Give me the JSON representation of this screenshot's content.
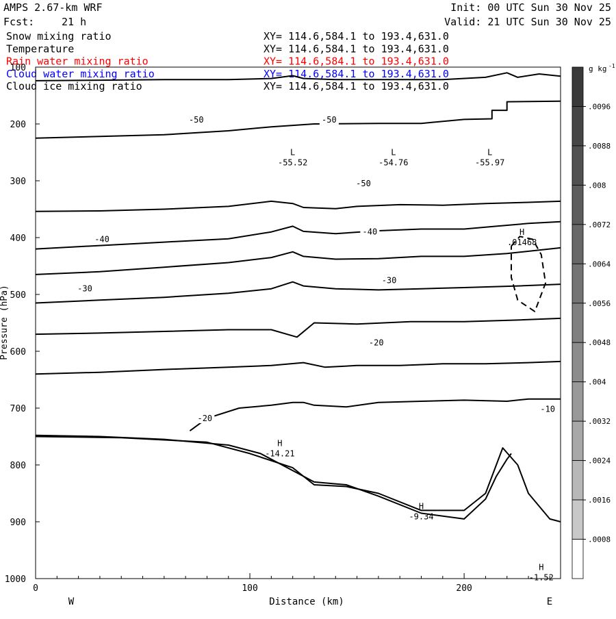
{
  "header": {
    "model": "AMPS 2.67-km WRF",
    "fcst_label": "Fcst:",
    "fcst_value": "21 h",
    "init": "Init: 00 UTC Sun 30 Nov 25",
    "valid": "Valid: 21 UTC Sun 30 Nov 25"
  },
  "fields": [
    {
      "name": "Snow mixing ratio",
      "xy": "XY= 114.6,584.1 to 193.4,631.0",
      "color": "#000000"
    },
    {
      "name": "Temperature",
      "xy": "XY= 114.6,584.1 to 193.4,631.0",
      "color": "#000000"
    },
    {
      "name": "Rain water mixing ratio",
      "xy": "XY= 114.6,584.1 to 193.4,631.0",
      "color": "#ff0000"
    },
    {
      "name": "Cloud water mixing ratio",
      "xy": "XY= 114.6,584.1 to 193.4,631.0",
      "color": "#0000ff"
    },
    {
      "name": "Cloud ice mixing ratio",
      "xy": "XY= 114.6,584.1 to 193.4,631.0",
      "color": "#000000"
    }
  ],
  "chart_data": {
    "type": "contour",
    "xlabel": "Distance (km)",
    "ylabel": "Pressure (hPa)",
    "xlim": [
      0,
      245
    ],
    "ylim": [
      1000,
      100
    ],
    "x_ticks": [
      0,
      100,
      200
    ],
    "y_ticks": [
      100,
      200,
      300,
      400,
      500,
      600,
      700,
      800,
      900,
      1000
    ],
    "west_label": "W",
    "east_label": "E",
    "colorbar": {
      "unit": "g kg",
      "unit_exp": "-1",
      "labels": [
        ".0096",
        ".0088",
        ".008",
        ".0072",
        ".0064",
        ".0056",
        ".0048",
        ".004",
        ".0032",
        ".0024",
        ".0016",
        ".0008"
      ],
      "shades": [
        "#3a3a3a",
        "#464646",
        "#515151",
        "#5d5d5d",
        "#686868",
        "#747474",
        "#808080",
        "#8c8c8c",
        "#999999",
        "#a8a8a8",
        "#b8b8b8",
        "#c8c8c8",
        "#ffffff"
      ]
    },
    "contours": [
      {
        "field": "temperature",
        "points": [
          [
            0,
            124
          ],
          [
            30,
            123
          ],
          [
            60,
            122
          ],
          [
            90,
            122
          ],
          [
            110,
            120
          ],
          [
            120,
            115
          ],
          [
            125,
            120
          ],
          [
            140,
            122
          ],
          [
            160,
            122
          ],
          [
            190,
            122
          ],
          [
            210,
            118
          ],
          [
            220,
            110
          ],
          [
            225,
            118
          ],
          [
            235,
            112
          ],
          [
            245,
            116
          ]
        ]
      },
      {
        "field": "temperature",
        "label": "-50",
        "label_at": [
          74,
          193
        ],
        "points": [
          [
            0,
            225
          ],
          [
            30,
            222
          ],
          [
            60,
            219
          ],
          [
            90,
            212
          ],
          [
            110,
            205
          ],
          [
            130,
            200
          ],
          [
            160,
            199
          ],
          [
            180,
            199
          ],
          [
            200,
            192
          ],
          [
            213,
            191
          ],
          [
            213,
            176
          ],
          [
            220,
            176
          ],
          [
            220,
            161
          ],
          [
            245,
            160
          ]
        ]
      },
      {
        "field": "temperature",
        "label": "-50",
        "label_at": [
          152,
          305
        ],
        "points": [
          [
            0,
            354
          ],
          [
            30,
            353
          ],
          [
            60,
            350
          ],
          [
            90,
            345
          ],
          [
            110,
            336
          ],
          [
            120,
            340
          ],
          [
            125,
            347
          ],
          [
            140,
            349
          ],
          [
            150,
            345
          ],
          [
            170,
            342
          ],
          [
            190,
            343
          ],
          [
            210,
            340
          ],
          [
            230,
            338
          ],
          [
            245,
            336
          ]
        ]
      },
      {
        "field": "temperature",
        "points": [
          [
            0,
            420
          ],
          [
            30,
            414
          ],
          [
            60,
            408
          ],
          [
            90,
            402
          ],
          [
            110,
            390
          ],
          [
            120,
            380
          ],
          [
            125,
            389
          ],
          [
            140,
            393
          ],
          [
            160,
            388
          ],
          [
            180,
            385
          ],
          [
            200,
            385
          ],
          [
            215,
            380
          ],
          [
            230,
            375
          ],
          [
            245,
            372
          ]
        ]
      },
      {
        "field": "temperature",
        "label": "-40",
        "label_at": [
          31,
          403
        ],
        "points": [
          [
            0,
            465
          ],
          [
            30,
            460
          ],
          [
            60,
            452
          ],
          [
            90,
            444
          ],
          [
            110,
            435
          ],
          [
            120,
            425
          ],
          [
            125,
            433
          ],
          [
            140,
            438
          ],
          [
            160,
            437
          ],
          [
            180,
            433
          ],
          [
            200,
            433
          ],
          [
            220,
            428
          ],
          [
            235,
            422
          ],
          [
            245,
            418
          ]
        ]
      },
      {
        "field": "temperature",
        "points": [
          [
            0,
            515
          ],
          [
            30,
            510
          ],
          [
            60,
            505
          ],
          [
            90,
            498
          ],
          [
            110,
            490
          ],
          [
            120,
            478
          ],
          [
            125,
            485
          ],
          [
            140,
            490
          ],
          [
            160,
            492
          ],
          [
            180,
            490
          ],
          [
            200,
            488
          ],
          [
            225,
            485
          ],
          [
            245,
            482
          ]
        ]
      },
      {
        "field": "temperature",
        "label": "-30",
        "label_at": [
          23,
          490
        ],
        "points": [
          [
            0,
            570
          ],
          [
            30,
            568
          ],
          [
            60,
            565
          ],
          [
            90,
            562
          ],
          [
            110,
            562
          ],
          [
            122,
            575
          ],
          [
            130,
            550
          ],
          [
            150,
            552
          ],
          [
            175,
            548
          ],
          [
            200,
            548
          ],
          [
            225,
            545
          ],
          [
            245,
            542
          ]
        ]
      },
      {
        "field": "temperature",
        "points": [
          [
            0,
            640
          ],
          [
            30,
            637
          ],
          [
            60,
            632
          ],
          [
            90,
            628
          ],
          [
            110,
            625
          ],
          [
            125,
            620
          ],
          [
            135,
            628
          ],
          [
            150,
            625
          ],
          [
            170,
            625
          ],
          [
            190,
            622
          ],
          [
            210,
            622
          ],
          [
            230,
            620
          ],
          [
            245,
            618
          ]
        ]
      },
      {
        "field": "temperature",
        "label": "-20",
        "label_at": [
          159,
          585
        ],
        "points": [
          [
            72,
            740
          ],
          [
            80,
            718
          ],
          [
            95,
            700
          ],
          [
            110,
            695
          ],
          [
            120,
            690
          ],
          [
            125,
            690
          ],
          [
            130,
            695
          ],
          [
            145,
            698
          ],
          [
            160,
            690
          ],
          [
            180,
            688
          ],
          [
            200,
            686
          ],
          [
            220,
            688
          ],
          [
            230,
            684
          ],
          [
            245,
            684
          ]
        ]
      },
      {
        "field": "temperature",
        "label": "-10",
        "label_at": [
          239,
          702
        ],
        "points": [
          [
            0,
            750
          ],
          [
            40,
            752
          ],
          [
            80,
            760
          ],
          [
            100,
            780
          ],
          [
            120,
            805
          ],
          [
            130,
            835
          ],
          [
            145,
            838
          ],
          [
            160,
            850
          ],
          [
            180,
            880
          ],
          [
            200,
            880
          ],
          [
            210,
            850
          ],
          [
            218,
            770
          ],
          [
            225,
            800
          ],
          [
            230,
            850
          ],
          [
            240,
            895
          ],
          [
            245,
            900
          ]
        ]
      },
      {
        "field": "temperature",
        "points": [
          [
            0,
            748
          ],
          [
            30,
            750
          ],
          [
            60,
            755
          ],
          [
            90,
            765
          ],
          [
            105,
            780
          ],
          [
            120,
            810
          ],
          [
            130,
            830
          ],
          [
            145,
            835
          ],
          [
            160,
            855
          ],
          [
            180,
            885
          ],
          [
            200,
            895
          ],
          [
            210,
            860
          ],
          [
            215,
            820
          ],
          [
            220,
            790
          ],
          [
            222,
            780
          ]
        ]
      },
      {
        "field": "cloud_ice",
        "dashed": true,
        "points": [
          [
            222,
            415
          ],
          [
            226,
            398
          ],
          [
            232,
            403
          ],
          [
            236,
            430
          ],
          [
            238,
            480
          ],
          [
            233,
            530
          ],
          [
            225,
            510
          ],
          [
            222,
            470
          ],
          [
            222,
            415
          ]
        ]
      }
    ],
    "extrema": [
      {
        "kind": "L",
        "value": "-55.52",
        "x": 120,
        "p": 255
      },
      {
        "kind": "L",
        "value": "-54.76",
        "x": 167,
        "p": 255
      },
      {
        "kind": "L",
        "value": "-55.97",
        "x": 212,
        "p": 255
      },
      {
        "kind": "H",
        "value": ".01468",
        "x": 227,
        "p": 395
      },
      {
        "kind": "H",
        "value": "-14.21",
        "x": 114,
        "p": 767
      },
      {
        "kind": "H",
        "value": "-9.34",
        "x": 180,
        "p": 878
      },
      {
        "kind": "H",
        "value": "-1.52",
        "x": 236,
        "p": 985
      }
    ],
    "inline_labels": [
      {
        "text": "-50",
        "x": 75,
        "p": 193
      },
      {
        "text": "-50",
        "x": 153,
        "p": 305
      },
      {
        "text": "-40",
        "x": 31,
        "p": 403
      },
      {
        "text": "-40",
        "x": 156,
        "p": 390
      },
      {
        "text": "-30",
        "x": 23,
        "p": 490
      },
      {
        "text": "-30",
        "x": 165,
        "p": 475
      },
      {
        "text": "-20",
        "x": 79,
        "p": 718
      },
      {
        "text": "-20",
        "x": 159,
        "p": 585
      },
      {
        "text": "-10",
        "x": 239,
        "p": 702
      },
      {
        "text": "-50",
        "x": 137,
        "p": 193
      }
    ]
  }
}
